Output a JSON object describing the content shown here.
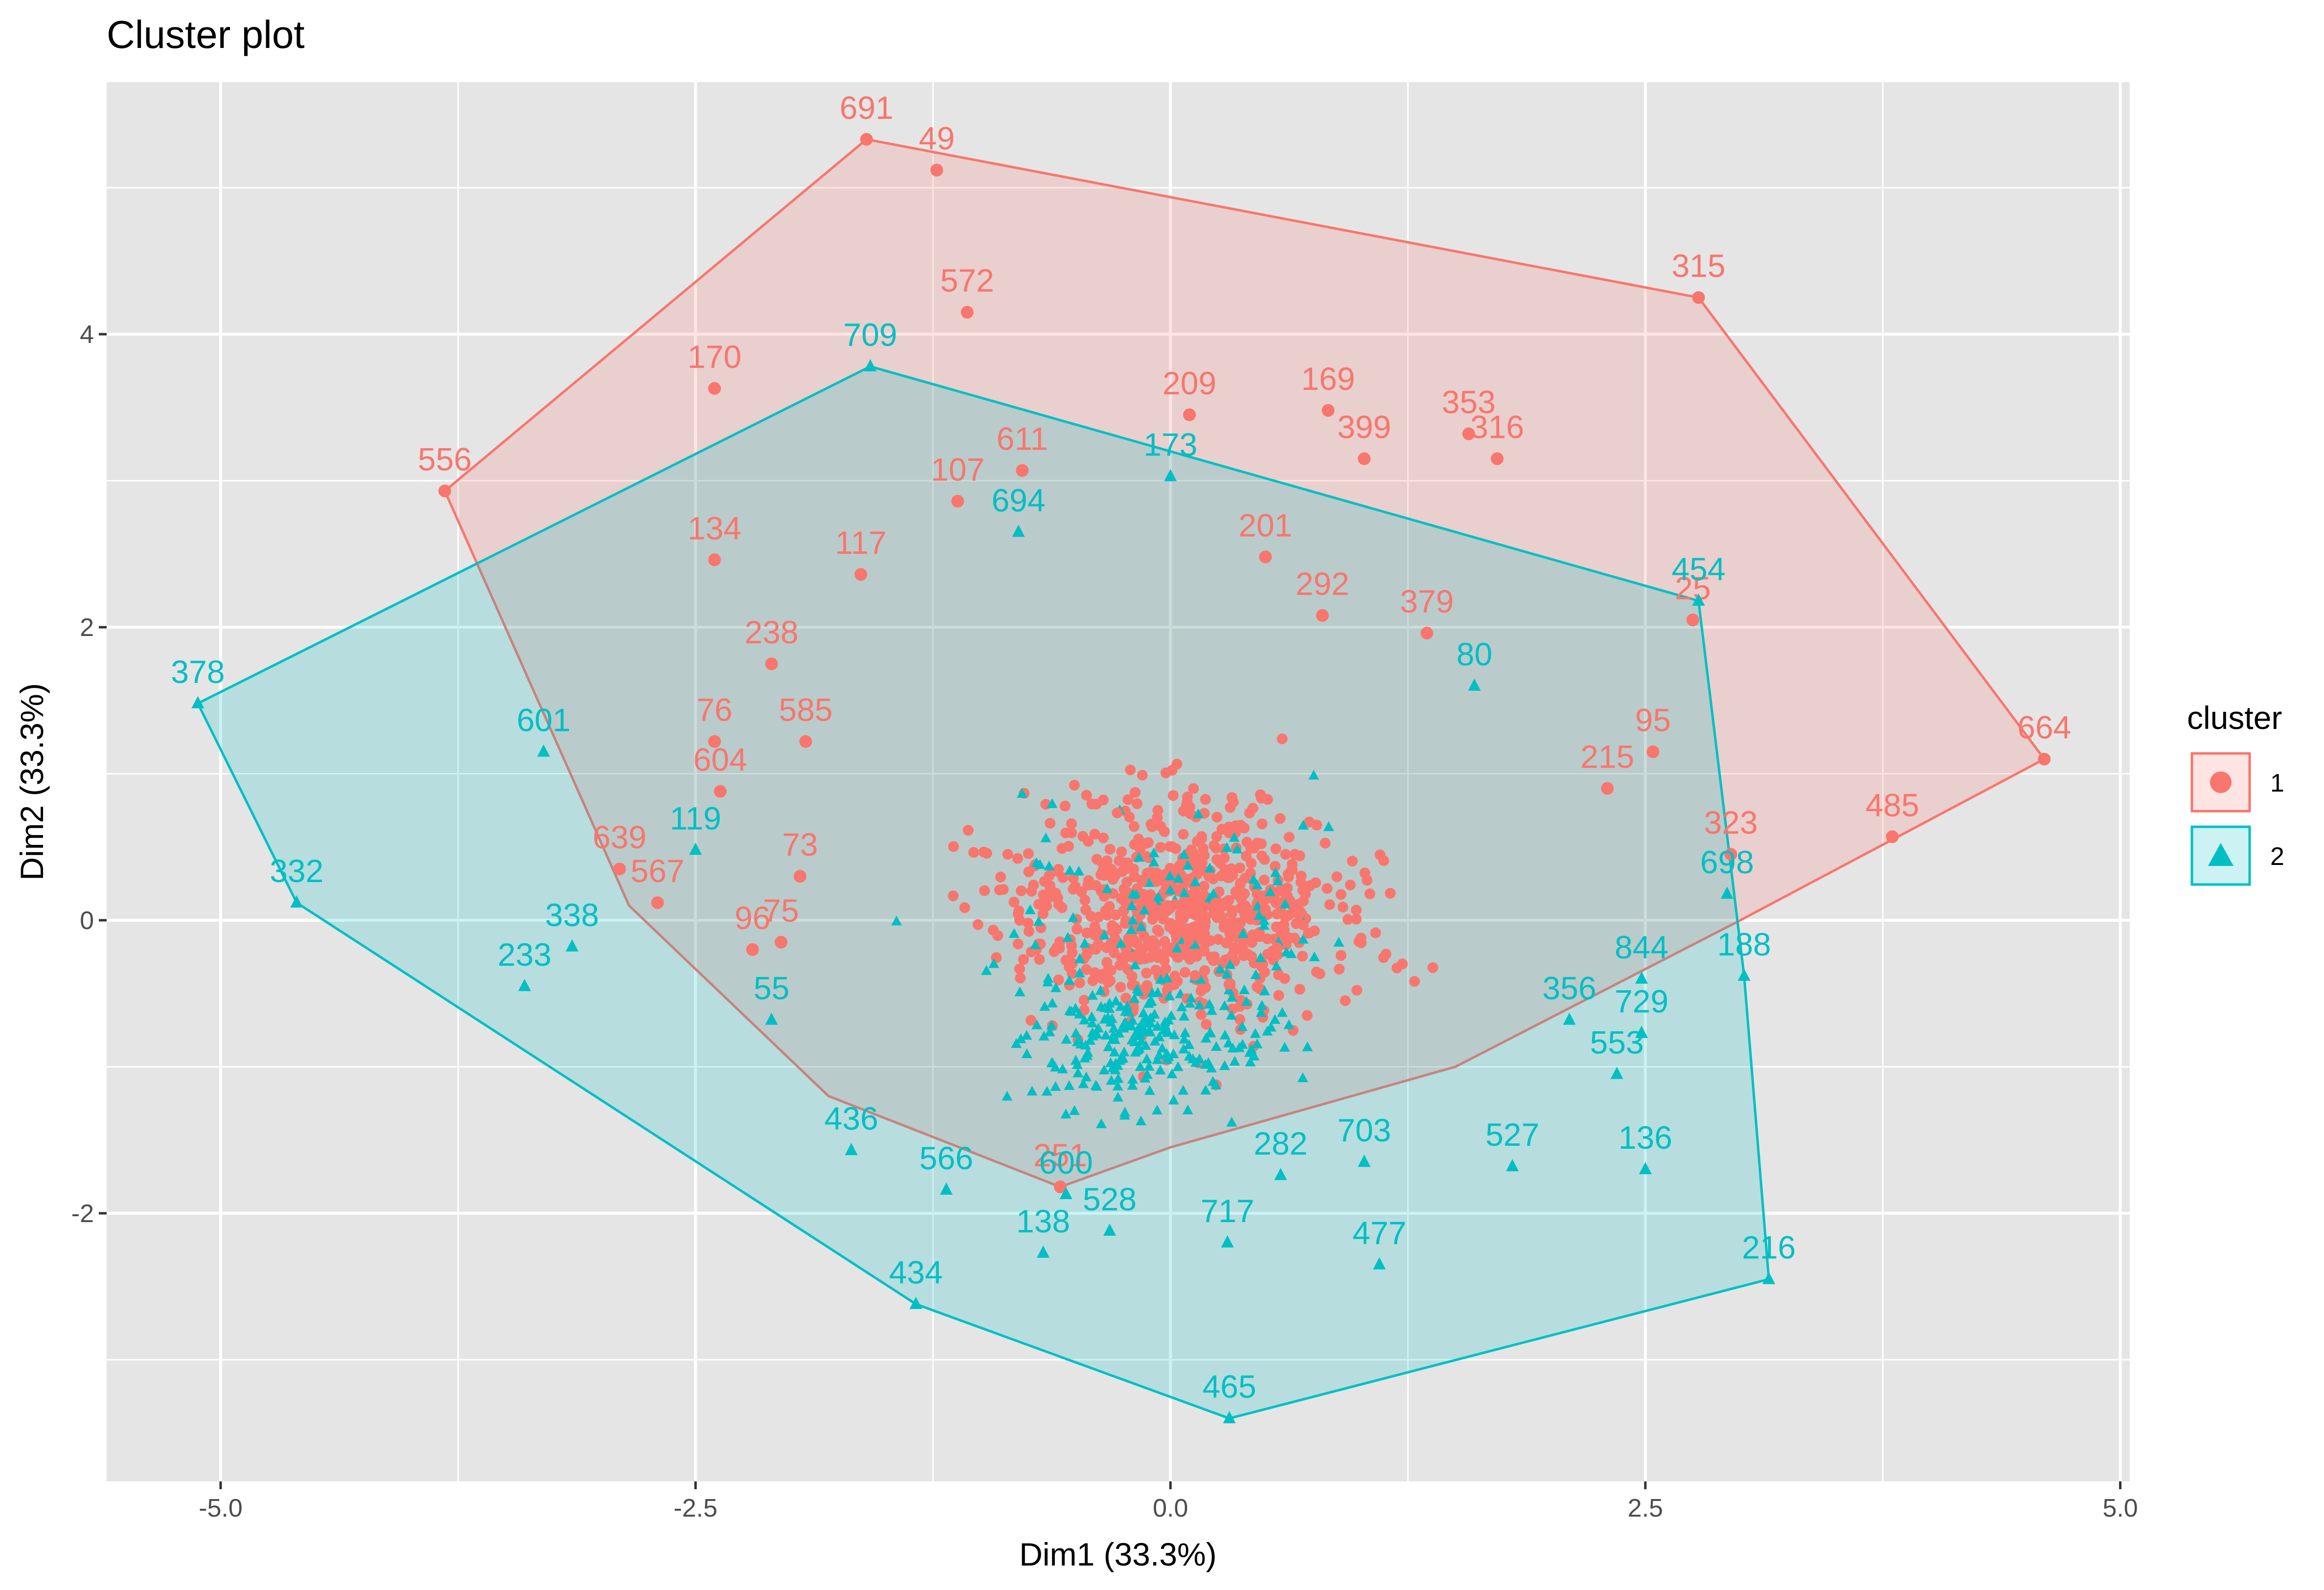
{
  "colors": {
    "cluster1": "#F8766D",
    "cluster2": "#00BFC4",
    "panel": "#E5E5E5",
    "grid": "#FFFFFF"
  },
  "chart_data": {
    "type": "scatter",
    "title": "Cluster plot",
    "xlabel": "Dim1 (33.3%)",
    "ylabel": "Dim2 (33.3%)",
    "xlim": [
      -5.6,
      5.05
    ],
    "ylim": [
      -3.83,
      5.72
    ],
    "x_ticks": [
      -5.0,
      -2.5,
      0.0,
      2.5,
      5.0
    ],
    "x_tick_labels": [
      "-5.0",
      "-2.5",
      "0.0",
      "2.5",
      "5.0"
    ],
    "y_ticks": [
      -2,
      0,
      2,
      4
    ],
    "y_tick_labels": [
      "-2",
      "0",
      "2",
      "4"
    ],
    "legend": {
      "title": "cluster",
      "position": "right",
      "entries": [
        "1",
        "2"
      ]
    },
    "hulls": [
      {
        "cluster": "1",
        "vertices": [
          [
            -3.82,
            2.93
          ],
          [
            -1.6,
            5.33
          ],
          [
            2.78,
            4.25
          ],
          [
            4.6,
            1.1
          ],
          [
            3.0,
            0.0
          ],
          [
            1.5,
            -1.0
          ],
          [
            0.0,
            -1.55
          ],
          [
            -0.58,
            -1.82
          ],
          [
            -1.8,
            -1.2
          ],
          [
            -2.85,
            0.1
          ]
        ]
      },
      {
        "cluster": "2",
        "vertices": [
          [
            -5.12,
            1.48
          ],
          [
            -1.58,
            3.78
          ],
          [
            2.78,
            2.18
          ],
          [
            3.02,
            -0.38
          ],
          [
            3.15,
            -2.45
          ],
          [
            0.31,
            -3.4
          ],
          [
            -1.34,
            -2.62
          ],
          [
            -4.6,
            0.12
          ]
        ]
      }
    ],
    "labeled_points": [
      {
        "cluster": "1",
        "label": "691",
        "x": -1.6,
        "y": 5.33
      },
      {
        "cluster": "1",
        "label": "49",
        "x": -1.23,
        "y": 5.12
      },
      {
        "cluster": "1",
        "label": "572",
        "x": -1.07,
        "y": 4.15
      },
      {
        "cluster": "1",
        "label": "315",
        "x": 2.78,
        "y": 4.25
      },
      {
        "cluster": "1",
        "label": "170",
        "x": -2.4,
        "y": 3.63
      },
      {
        "cluster": "1",
        "label": "556",
        "x": -3.82,
        "y": 2.93
      },
      {
        "cluster": "1",
        "label": "209",
        "x": 0.1,
        "y": 3.45
      },
      {
        "cluster": "1",
        "label": "169",
        "x": 0.83,
        "y": 3.48
      },
      {
        "cluster": "1",
        "label": "353",
        "x": 1.57,
        "y": 3.32
      },
      {
        "cluster": "1",
        "label": "399",
        "x": 1.02,
        "y": 3.15
      },
      {
        "cluster": "1",
        "label": "316",
        "x": 1.72,
        "y": 3.15
      },
      {
        "cluster": "1",
        "label": "611",
        "x": -0.78,
        "y": 3.07
      },
      {
        "cluster": "1",
        "label": "107",
        "x": -1.12,
        "y": 2.86
      },
      {
        "cluster": "1",
        "label": "134",
        "x": -2.4,
        "y": 2.46
      },
      {
        "cluster": "1",
        "label": "117",
        "x": -1.63,
        "y": 2.36
      },
      {
        "cluster": "1",
        "label": "201",
        "x": 0.5,
        "y": 2.48
      },
      {
        "cluster": "1",
        "label": "292",
        "x": 0.8,
        "y": 2.08
      },
      {
        "cluster": "1",
        "label": "379",
        "x": 1.35,
        "y": 1.96
      },
      {
        "cluster": "1",
        "label": "238",
        "x": -2.1,
        "y": 1.75
      },
      {
        "cluster": "1",
        "label": "76",
        "x": -2.4,
        "y": 1.22
      },
      {
        "cluster": "1",
        "label": "585",
        "x": -1.92,
        "y": 1.22
      },
      {
        "cluster": "1",
        "label": "604",
        "x": -2.37,
        "y": 0.88
      },
      {
        "cluster": "1",
        "label": "95",
        "x": 2.54,
        "y": 1.15
      },
      {
        "cluster": "1",
        "label": "215",
        "x": 2.3,
        "y": 0.9
      },
      {
        "cluster": "1",
        "label": "664",
        "x": 4.6,
        "y": 1.1
      },
      {
        "cluster": "1",
        "label": "485",
        "x": 3.8,
        "y": 0.57
      },
      {
        "cluster": "1",
        "label": "323",
        "x": 2.95,
        "y": 0.45
      },
      {
        "cluster": "1",
        "label": "639",
        "x": -2.9,
        "y": 0.35
      },
      {
        "cluster": "1",
        "label": "567",
        "x": -2.7,
        "y": 0.12
      },
      {
        "cluster": "1",
        "label": "73",
        "x": -1.95,
        "y": 0.3
      },
      {
        "cluster": "1",
        "label": "96",
        "x": -2.2,
        "y": -0.2
      },
      {
        "cluster": "1",
        "label": "75",
        "x": -2.05,
        "y": -0.15
      },
      {
        "cluster": "1",
        "label": "251",
        "x": -0.58,
        "y": -1.82
      },
      {
        "cluster": "1",
        "label": "25",
        "x": 2.75,
        "y": 2.05
      },
      {
        "cluster": "2",
        "label": "709",
        "x": -1.58,
        "y": 3.78
      },
      {
        "cluster": "2",
        "label": "173",
        "x": 0.0,
        "y": 3.03
      },
      {
        "cluster": "2",
        "label": "378",
        "x": -5.12,
        "y": 1.48
      },
      {
        "cluster": "2",
        "label": "454",
        "x": 2.78,
        "y": 2.18
      },
      {
        "cluster": "2",
        "label": "601",
        "x": -3.3,
        "y": 1.15
      },
      {
        "cluster": "2",
        "label": "119",
        "x": -2.5,
        "y": 0.48
      },
      {
        "cluster": "2",
        "label": "332",
        "x": -4.6,
        "y": 0.12
      },
      {
        "cluster": "2",
        "label": "338",
        "x": -3.15,
        "y": -0.18
      },
      {
        "cluster": "2",
        "label": "233",
        "x": -3.4,
        "y": -0.45
      },
      {
        "cluster": "2",
        "label": "698",
        "x": 2.93,
        "y": 0.18
      },
      {
        "cluster": "2",
        "label": "188",
        "x": 3.02,
        "y": -0.38
      },
      {
        "cluster": "2",
        "label": "844",
        "x": 2.48,
        "y": -0.4
      },
      {
        "cluster": "2",
        "label": "729",
        "x": 2.48,
        "y": -0.77
      },
      {
        "cluster": "2",
        "label": "356",
        "x": 2.1,
        "y": -0.68
      },
      {
        "cluster": "2",
        "label": "553",
        "x": 2.35,
        "y": -1.05
      },
      {
        "cluster": "2",
        "label": "136",
        "x": 2.5,
        "y": -1.7
      },
      {
        "cluster": "2",
        "label": "527",
        "x": 1.8,
        "y": -1.68
      },
      {
        "cluster": "2",
        "label": "703",
        "x": 1.02,
        "y": -1.65
      },
      {
        "cluster": "2",
        "label": "477",
        "x": 1.1,
        "y": -2.35
      },
      {
        "cluster": "2",
        "label": "216",
        "x": 3.15,
        "y": -2.45
      },
      {
        "cluster": "2",
        "label": "465",
        "x": 0.31,
        "y": -3.4
      },
      {
        "cluster": "2",
        "label": "434",
        "x": -1.34,
        "y": -2.62
      },
      {
        "cluster": "2",
        "label": "566",
        "x": -1.18,
        "y": -1.84
      },
      {
        "cluster": "2",
        "label": "138",
        "x": -0.67,
        "y": -2.27
      },
      {
        "cluster": "2",
        "label": "528",
        "x": -0.32,
        "y": -2.12
      },
      {
        "cluster": "2",
        "label": "600",
        "x": -0.55,
        "y": -1.87
      },
      {
        "cluster": "2",
        "label": "282",
        "x": 0.58,
        "y": -1.74
      },
      {
        "cluster": "2",
        "label": "717",
        "x": 0.3,
        "y": -2.2
      },
      {
        "cluster": "2",
        "label": "55",
        "x": -2.1,
        "y": -0.68
      },
      {
        "cluster": "2",
        "label": "436",
        "x": -1.68,
        "y": -1.57
      },
      {
        "cluster": "2",
        "label": "694",
        "x": -0.8,
        "y": 2.65
      },
      {
        "cluster": "2",
        "label": "80",
        "x": 1.6,
        "y": 1.6
      }
    ]
  }
}
